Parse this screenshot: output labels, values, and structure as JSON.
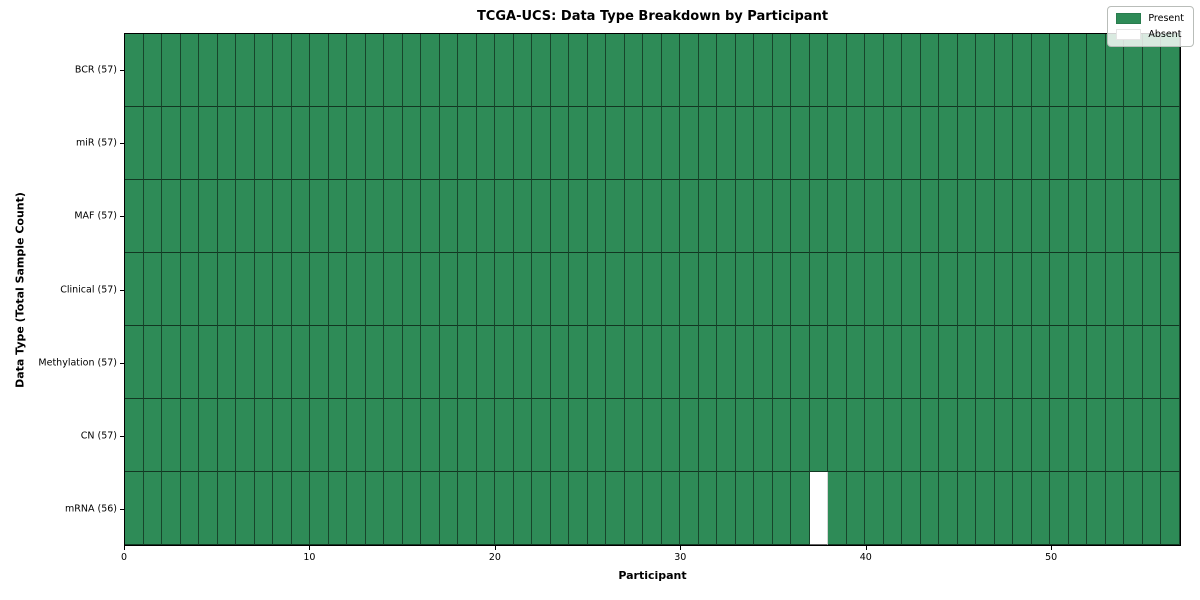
{
  "chart_data": {
    "type": "heatmap",
    "title": "TCGA-UCS: Data Type Breakdown by Participant",
    "xlabel": "Participant",
    "ylabel": "Data Type (Total Sample Count)",
    "x_range": [
      0,
      57
    ],
    "x_ticks": [
      0,
      10,
      20,
      30,
      40,
      50
    ],
    "n_participants": 57,
    "rows": [
      {
        "label": "BCR (57)",
        "data_type": "BCR",
        "sample_count": 57,
        "absent_participants": []
      },
      {
        "label": "miR (57)",
        "data_type": "miR",
        "sample_count": 57,
        "absent_participants": []
      },
      {
        "label": "MAF (57)",
        "data_type": "MAF",
        "sample_count": 57,
        "absent_participants": []
      },
      {
        "label": "Clinical (57)",
        "data_type": "Clinical",
        "sample_count": 57,
        "absent_participants": []
      },
      {
        "label": "Methylation (57)",
        "data_type": "Methylation",
        "sample_count": 57,
        "absent_participants": []
      },
      {
        "label": "CN (57)",
        "data_type": "CN",
        "sample_count": 57,
        "absent_participants": []
      },
      {
        "label": "mRNA (56)",
        "data_type": "mRNA",
        "sample_count": 56,
        "absent_participants": [
          37
        ]
      }
    ],
    "legend": {
      "position": "upper-right",
      "entries": [
        {
          "label": "Present",
          "color": "#2e8b57"
        },
        {
          "label": "Absent",
          "color": "#ffffff"
        }
      ]
    },
    "colors": {
      "present": "#2e8b57",
      "absent": "#ffffff",
      "cell_border": "rgba(0,0,0,0.5)",
      "spine": "#000000"
    },
    "grid": true
  }
}
